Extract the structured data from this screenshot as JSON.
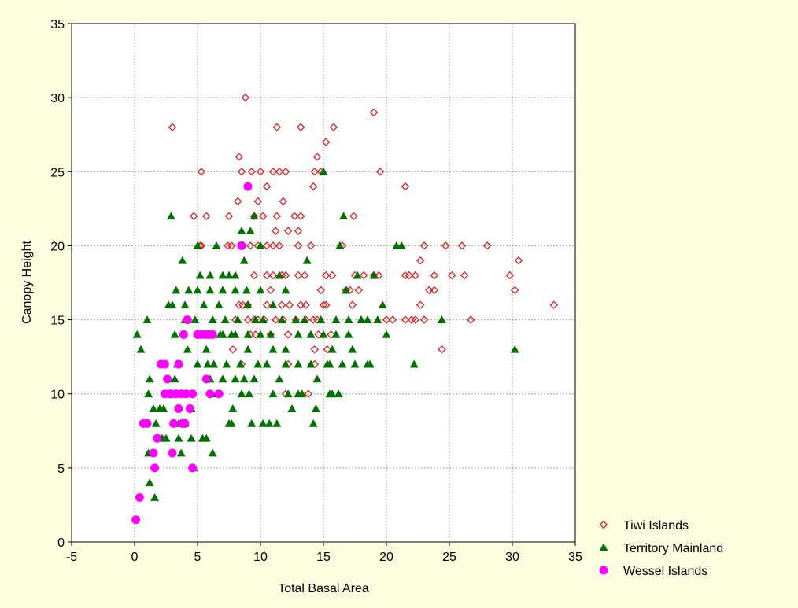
{
  "chart_data": {
    "type": "scatter",
    "xlabel": "Total Basal Area",
    "ylabel": "Canopy Height",
    "xlim": [
      -5,
      35
    ],
    "ylim": [
      0,
      35
    ],
    "x_ticks": [
      -5,
      0,
      5,
      10,
      15,
      20,
      25,
      30,
      35
    ],
    "y_ticks": [
      0,
      5,
      10,
      15,
      20,
      25,
      30,
      35
    ],
    "grid": true,
    "legend_position": "bottom-right, outside plot",
    "series": [
      {
        "name": "Tiwi Islands",
        "marker": "open-diamond",
        "color": "#e02020",
        "points": [
          [
            3,
            28
          ],
          [
            8.8,
            30
          ],
          [
            11.3,
            28
          ],
          [
            13.2,
            28
          ],
          [
            15.8,
            28
          ],
          [
            19,
            29
          ],
          [
            8.3,
            26
          ],
          [
            14.5,
            26
          ],
          [
            15.2,
            27
          ],
          [
            5.3,
            25
          ],
          [
            8.5,
            25
          ],
          [
            9.3,
            25
          ],
          [
            10,
            25
          ],
          [
            11,
            25
          ],
          [
            11.5,
            25
          ],
          [
            12,
            25
          ],
          [
            14.3,
            25
          ],
          [
            14.8,
            25
          ],
          [
            19.5,
            25
          ],
          [
            14.2,
            24
          ],
          [
            10.5,
            24
          ],
          [
            21.5,
            24
          ],
          [
            4.7,
            22
          ],
          [
            5.7,
            22
          ],
          [
            7.5,
            22
          ],
          [
            9.5,
            22
          ],
          [
            10.2,
            22
          ],
          [
            11.3,
            22
          ],
          [
            12.7,
            22
          ],
          [
            13.2,
            22
          ],
          [
            17.4,
            22
          ],
          [
            8.2,
            23
          ],
          [
            9.8,
            23
          ],
          [
            11.8,
            23
          ],
          [
            11.2,
            21
          ],
          [
            12.2,
            21
          ],
          [
            13,
            21
          ],
          [
            5.3,
            20
          ],
          [
            7.4,
            20
          ],
          [
            7.7,
            20
          ],
          [
            9.2,
            20
          ],
          [
            9.8,
            20
          ],
          [
            10.5,
            20
          ],
          [
            11,
            20
          ],
          [
            11.5,
            20
          ],
          [
            13,
            20
          ],
          [
            14,
            20
          ],
          [
            16.5,
            20
          ],
          [
            22.7,
            19
          ],
          [
            23,
            20
          ],
          [
            24.7,
            20
          ],
          [
            26,
            20
          ],
          [
            28,
            20
          ],
          [
            30.5,
            19
          ],
          [
            29.8,
            18
          ],
          [
            30.2,
            17
          ],
          [
            33.3,
            16
          ],
          [
            21.5,
            18
          ],
          [
            21.8,
            18
          ],
          [
            22.3,
            18
          ],
          [
            23.8,
            18
          ],
          [
            25.2,
            18
          ],
          [
            26.2,
            18
          ],
          [
            19,
            18
          ],
          [
            19.4,
            18
          ],
          [
            18.2,
            18
          ],
          [
            17.5,
            18
          ],
          [
            11,
            18
          ],
          [
            11.7,
            18
          ],
          [
            12,
            18
          ],
          [
            13,
            18
          ],
          [
            13.5,
            18
          ],
          [
            15.2,
            18
          ],
          [
            15.7,
            18
          ],
          [
            9.5,
            18
          ],
          [
            10.5,
            18
          ],
          [
            8.3,
            16
          ],
          [
            8.6,
            16
          ],
          [
            9,
            16
          ],
          [
            10.5,
            16
          ],
          [
            11.7,
            16
          ],
          [
            12.3,
            16
          ],
          [
            13.2,
            16
          ],
          [
            13.6,
            16
          ],
          [
            15,
            16
          ],
          [
            15.2,
            16
          ],
          [
            17.3,
            16
          ],
          [
            22.7,
            16
          ],
          [
            23.8,
            17
          ],
          [
            23.4,
            17
          ],
          [
            14.8,
            17
          ],
          [
            16.8,
            17
          ],
          [
            17.1,
            17
          ],
          [
            17.8,
            17
          ],
          [
            20,
            15
          ],
          [
            20.5,
            15
          ],
          [
            21.5,
            15
          ],
          [
            22,
            15
          ],
          [
            22.3,
            15
          ],
          [
            23,
            15
          ],
          [
            26.7,
            15
          ],
          [
            14.2,
            15
          ],
          [
            14.5,
            15
          ],
          [
            8,
            15
          ],
          [
            9,
            15
          ],
          [
            9.5,
            15
          ],
          [
            10.3,
            15
          ],
          [
            11.2,
            15
          ],
          [
            11.8,
            15
          ],
          [
            12.8,
            15
          ],
          [
            13.6,
            15
          ],
          [
            14.6,
            14
          ],
          [
            15.6,
            14
          ],
          [
            12.2,
            14
          ],
          [
            10.8,
            14
          ],
          [
            9.2,
            14
          ],
          [
            9.6,
            14
          ],
          [
            7.8,
            13
          ],
          [
            14.3,
            13
          ],
          [
            15.3,
            13
          ],
          [
            8.5,
            12
          ],
          [
            12.2,
            12
          ],
          [
            14.3,
            12
          ],
          [
            12,
            10
          ],
          [
            13.8,
            10
          ],
          [
            24.4,
            13
          ],
          [
            5.2,
            20
          ],
          [
            9.8,
            15
          ],
          [
            10.8,
            17
          ]
        ]
      },
      {
        "name": "Territory Mainland",
        "marker": "filled-triangle",
        "color": "#007000",
        "points": [
          [
            0.2,
            14
          ],
          [
            0.5,
            13
          ],
          [
            1,
            15
          ],
          [
            1.2,
            11
          ],
          [
            1.1,
            10
          ],
          [
            1.1,
            6
          ],
          [
            1.2,
            4
          ],
          [
            1.6,
            3
          ],
          [
            1.5,
            9
          ],
          [
            1.7,
            8
          ],
          [
            2,
            9
          ],
          [
            2.2,
            7
          ],
          [
            2.5,
            7
          ],
          [
            2.7,
            16
          ],
          [
            2.9,
            22
          ],
          [
            3,
            16
          ],
          [
            3.3,
            17
          ],
          [
            3.2,
            14
          ],
          [
            3.4,
            12
          ],
          [
            3.2,
            11
          ],
          [
            3.2,
            8
          ],
          [
            3.5,
            7
          ],
          [
            3.7,
            6
          ],
          [
            3.8,
            19
          ],
          [
            4,
            16
          ],
          [
            4.2,
            13
          ],
          [
            4.3,
            17
          ],
          [
            4.5,
            9
          ],
          [
            4.7,
            5
          ],
          [
            4.8,
            15
          ],
          [
            5,
            20
          ],
          [
            5.2,
            18
          ],
          [
            5.5,
            16
          ],
          [
            5.7,
            13
          ],
          [
            5.8,
            12
          ],
          [
            6,
            18
          ],
          [
            6.2,
            15
          ],
          [
            6.3,
            12
          ],
          [
            6.5,
            20
          ],
          [
            6.7,
            16
          ],
          [
            6.8,
            14
          ],
          [
            7,
            18
          ],
          [
            7.2,
            15
          ],
          [
            7.3,
            12
          ],
          [
            7.5,
            18
          ],
          [
            7.7,
            14
          ],
          [
            7.8,
            9
          ],
          [
            8,
            18
          ],
          [
            8.2,
            15
          ],
          [
            8.4,
            12
          ],
          [
            8.5,
            21
          ],
          [
            8.7,
            19
          ],
          [
            8.9,
            17
          ],
          [
            9,
            13
          ],
          [
            9.2,
            21
          ],
          [
            9.3,
            8
          ],
          [
            9.5,
            22
          ],
          [
            9.6,
            15
          ],
          [
            9.8,
            12
          ],
          [
            10,
            20
          ],
          [
            10.2,
            15
          ],
          [
            10.5,
            12
          ],
          [
            10.8,
            14
          ],
          [
            11,
            10
          ],
          [
            11.3,
            8
          ],
          [
            11.5,
            18
          ],
          [
            11.7,
            15
          ],
          [
            12,
            12
          ],
          [
            12.2,
            10
          ],
          [
            12.5,
            9
          ],
          [
            12.8,
            15
          ],
          [
            13,
            12
          ],
          [
            13.3,
            10
          ],
          [
            13.5,
            15
          ],
          [
            13.7,
            19
          ],
          [
            14,
            12
          ],
          [
            14.2,
            8
          ],
          [
            14.4,
            9
          ],
          [
            14.5,
            11
          ],
          [
            14.8,
            15
          ],
          [
            15,
            25
          ],
          [
            15.3,
            12
          ],
          [
            15.5,
            10
          ],
          [
            15.7,
            13
          ],
          [
            16,
            15
          ],
          [
            16.3,
            20
          ],
          [
            16.6,
            22
          ],
          [
            16.8,
            17
          ],
          [
            17,
            15
          ],
          [
            17.3,
            13
          ],
          [
            17.7,
            18
          ],
          [
            18,
            15
          ],
          [
            18.5,
            15
          ],
          [
            18.7,
            12
          ],
          [
            19,
            18
          ],
          [
            19.3,
            15
          ],
          [
            19.7,
            16
          ],
          [
            20,
            14
          ],
          [
            20.8,
            20
          ],
          [
            21.2,
            20
          ],
          [
            22.2,
            12
          ],
          [
            24.4,
            15
          ],
          [
            30.2,
            13
          ],
          [
            5.4,
            7
          ],
          [
            5.7,
            7
          ],
          [
            6.2,
            6
          ],
          [
            7.5,
            8
          ],
          [
            7.7,
            8
          ],
          [
            8.5,
            10
          ],
          [
            9.1,
            10
          ],
          [
            10.2,
            8
          ],
          [
            10.7,
            8
          ],
          [
            11.5,
            11
          ],
          [
            13,
            10
          ],
          [
            15.7,
            10
          ],
          [
            16.2,
            10
          ],
          [
            3,
            10
          ],
          [
            3.5,
            8
          ],
          [
            2.7,
            11
          ],
          [
            4,
            8
          ],
          [
            4.5,
            7
          ],
          [
            6,
            11
          ],
          [
            6.5,
            10
          ],
          [
            7,
            11
          ],
          [
            8,
            11
          ],
          [
            8.7,
            11
          ],
          [
            9.5,
            11
          ],
          [
            2.3,
            9
          ],
          [
            5,
            12
          ],
          [
            6,
            14
          ],
          [
            7,
            14
          ],
          [
            8,
            14
          ],
          [
            9,
            14
          ],
          [
            10,
            14
          ],
          [
            11,
            13
          ],
          [
            12,
            13
          ],
          [
            13,
            14
          ],
          [
            14,
            14
          ],
          [
            15,
            14
          ],
          [
            16,
            14
          ],
          [
            17,
            14
          ],
          [
            18,
            15
          ],
          [
            11,
            16
          ],
          [
            12,
            17
          ],
          [
            10,
            17
          ],
          [
            9,
            16
          ],
          [
            8,
            17
          ],
          [
            7,
            17
          ],
          [
            6,
            17
          ],
          [
            5,
            17
          ],
          [
            4,
            15
          ],
          [
            15.5,
            12
          ],
          [
            16.5,
            12
          ],
          [
            17.5,
            12
          ],
          [
            18.5,
            12
          ]
        ]
      },
      {
        "name": "Wessel Islands",
        "marker": "filled-circle",
        "color": "#ff00ff",
        "points": [
          [
            0.1,
            1.5
          ],
          [
            0.4,
            3
          ],
          [
            0.7,
            8
          ],
          [
            1,
            8
          ],
          [
            1.5,
            6
          ],
          [
            1.6,
            5
          ],
          [
            1.8,
            7
          ],
          [
            2.1,
            12
          ],
          [
            2.4,
            12
          ],
          [
            2.4,
            10
          ],
          [
            2.6,
            11
          ],
          [
            2.8,
            10
          ],
          [
            3,
            6
          ],
          [
            3.1,
            8
          ],
          [
            3.3,
            10
          ],
          [
            3.5,
            9
          ],
          [
            3.5,
            12
          ],
          [
            3.7,
            10
          ],
          [
            3.9,
            14
          ],
          [
            4,
            8
          ],
          [
            4.1,
            10
          ],
          [
            4.2,
            15
          ],
          [
            4.4,
            9
          ],
          [
            4.6,
            10
          ],
          [
            4.6,
            5
          ],
          [
            5.3,
            14
          ],
          [
            5.6,
            14
          ],
          [
            5.7,
            11
          ],
          [
            5.9,
            14
          ],
          [
            6,
            10
          ],
          [
            6.2,
            14
          ],
          [
            6.7,
            10
          ],
          [
            8.5,
            20
          ],
          [
            9,
            24
          ],
          [
            3.8,
            8
          ],
          [
            2.9,
            10
          ],
          [
            5,
            14
          ]
        ]
      }
    ]
  }
}
